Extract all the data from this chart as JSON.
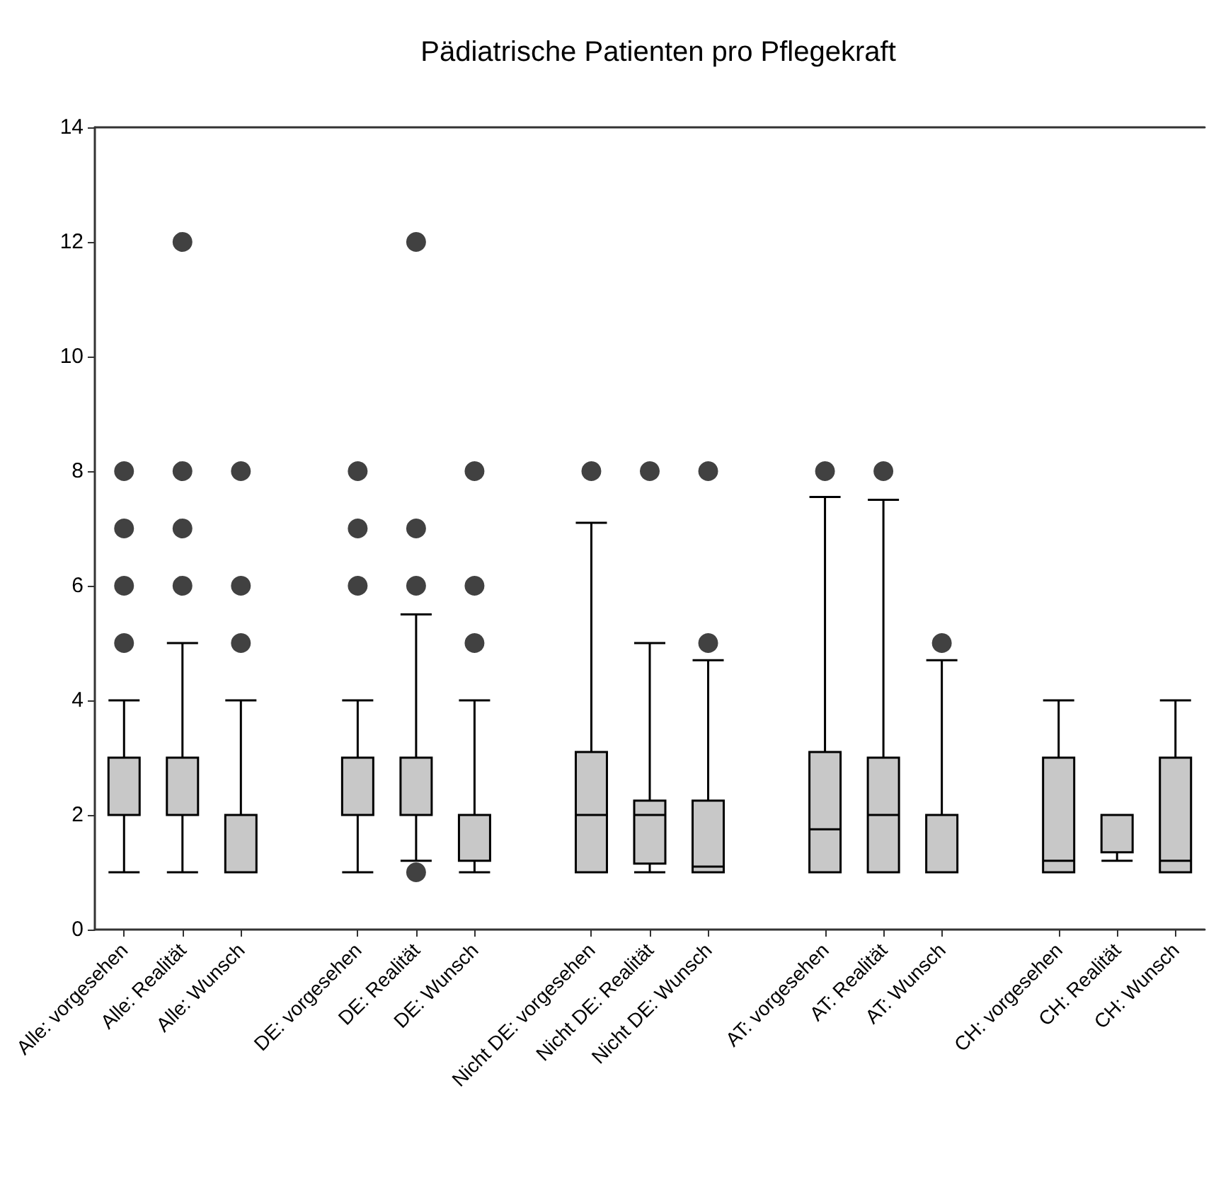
{
  "chart_data": {
    "type": "box",
    "title": "Pädiatrische Patienten pro Pflegekraft",
    "categories": [
      "Alle: vorgesehen",
      "Alle: Realität",
      "Alle: Wunsch",
      null,
      "DE: vorgesehen",
      "DE: Realität",
      "DE: Wunsch",
      null,
      "Nicht DE: vorgesehen",
      "Nicht DE: Realität",
      "Nicht DE: Wunsch",
      null,
      "AT: vorgesehen",
      "AT: Realität",
      "AT: Wunsch",
      null,
      "CH: vorgesehen",
      "CH: Realität",
      "CH: Wunsch"
    ],
    "color": "#c8c8c8",
    "boxes": [
      {
        "low": 1,
        "q1": 2,
        "median": 2,
        "q3": 3,
        "high": 4,
        "outliers": [
          5,
          6,
          7,
          8
        ]
      },
      {
        "low": 1,
        "q1": 2,
        "median": 2,
        "q3": 3,
        "high": 5,
        "outliers": [
          6,
          7,
          8,
          12
        ]
      },
      {
        "low": 1,
        "q1": 1,
        "median": 1,
        "q3": 2,
        "high": 4,
        "outliers": [
          5,
          6,
          8
        ]
      },
      null,
      {
        "low": 1,
        "q1": 2,
        "median": 2,
        "q3": 3,
        "high": 4,
        "outliers": [
          6,
          7,
          8
        ]
      },
      {
        "low": 1.2,
        "q1": 2,
        "median": 2,
        "q3": 3,
        "high": 5.5,
        "outliers": [
          1,
          6,
          7,
          12
        ]
      },
      {
        "low": 1,
        "q1": 1.2,
        "median": 2,
        "q3": 2,
        "high": 4,
        "outliers": [
          5,
          6,
          8
        ]
      },
      null,
      {
        "low": 1,
        "q1": 1,
        "median": 2,
        "q3": 3.1,
        "high": 7.1,
        "outliers": [
          8
        ]
      },
      {
        "low": 1,
        "q1": 1.15,
        "median": 2,
        "q3": 2.25,
        "high": 5,
        "outliers": [
          8
        ]
      },
      {
        "low": 1,
        "q1": 1,
        "median": 1.1,
        "q3": 2.25,
        "high": 4.7,
        "outliers": [
          5,
          8
        ]
      },
      null,
      {
        "low": 1,
        "q1": 1,
        "median": 1.75,
        "q3": 3.1,
        "high": 7.55,
        "outliers": [
          8
        ]
      },
      {
        "low": 1,
        "q1": 1,
        "median": 2,
        "q3": 3,
        "high": 7.5,
        "outliers": [
          8
        ]
      },
      {
        "low": 1,
        "q1": 1,
        "median": 1,
        "q3": 2,
        "high": 4.7,
        "outliers": [
          5
        ]
      },
      null,
      {
        "low": 1,
        "q1": 1,
        "median": 1.2,
        "q3": 3,
        "high": 4
      },
      {
        "low": 1.2,
        "q1": 1.35,
        "median": 2,
        "q3": 2,
        "high": 2
      },
      {
        "low": 1,
        "q1": 1,
        "median": 1.2,
        "q3": 3,
        "high": 4
      }
    ],
    "ylim": [
      0,
      14
    ],
    "yticks": [
      0,
      2,
      4,
      6,
      8,
      10,
      12,
      14
    ],
    "grid": false
  }
}
